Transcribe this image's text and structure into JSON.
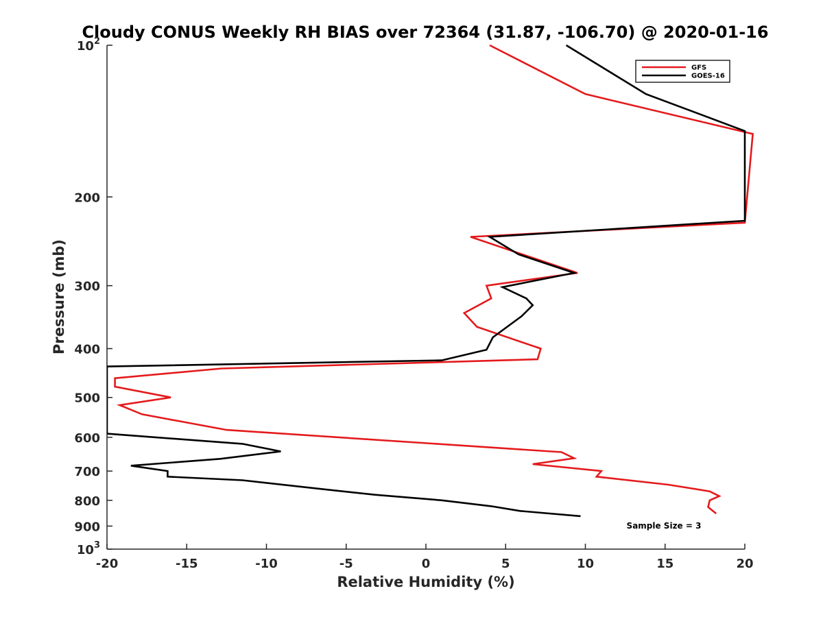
{
  "chart_data": {
    "type": "line",
    "title": "Cloudy CONUS Weekly RH BIAS over 72364 (31.87, -106.70) @ 2020-01-16",
    "xlabel": "Relative Humidity (%)",
    "ylabel": "Pressure (mb)",
    "xlim": [
      -20,
      20
    ],
    "ylim": [
      100,
      1000
    ],
    "yscale": "log",
    "y_reversed": true,
    "x_ticks": [
      -20,
      -15,
      -10,
      -5,
      0,
      5,
      10,
      15,
      20
    ],
    "x_tick_labels": [
      "-20",
      "-15",
      "-10",
      "-5",
      "0",
      "5",
      "10",
      "15",
      "20"
    ],
    "y_ticks": [
      {
        "value": 100,
        "base": "10",
        "exp": "2"
      },
      {
        "value": 200,
        "label": "200"
      },
      {
        "value": 300,
        "label": "300"
      },
      {
        "value": 400,
        "label": "400"
      },
      {
        "value": 500,
        "label": "500"
      },
      {
        "value": 600,
        "label": "600"
      },
      {
        "value": 700,
        "label": "700"
      },
      {
        "value": 800,
        "label": "800"
      },
      {
        "value": 900,
        "label": "900"
      },
      {
        "value": 1000,
        "base": "10",
        "exp": "3"
      }
    ],
    "grid": false,
    "legend": {
      "position": "top-right",
      "entries": [
        {
          "name": "GFS",
          "color": "#e41a1c"
        },
        {
          "name": "GOES-16",
          "color": "#000000"
        }
      ]
    },
    "annotation": "Sample Size = 3",
    "series": [
      {
        "name": "GFS",
        "color": "#e41a1c",
        "points": [
          [
            4.0,
            100
          ],
          [
            10.0,
            125
          ],
          [
            20.5,
            150
          ],
          [
            20.0,
            225
          ],
          [
            2.8,
            240
          ],
          [
            9.5,
            283
          ],
          [
            3.8,
            300
          ],
          [
            4.1,
            318
          ],
          [
            2.4,
            340
          ],
          [
            3.2,
            362
          ],
          [
            7.2,
            400
          ],
          [
            7.0,
            420
          ],
          [
            -12.8,
            438
          ],
          [
            -19.5,
            458
          ],
          [
            -19.5,
            476
          ],
          [
            -16.0,
            500
          ],
          [
            -19.2,
            518
          ],
          [
            -17.8,
            540
          ],
          [
            -12.5,
            580
          ],
          [
            8.5,
            642
          ],
          [
            9.3,
            660
          ],
          [
            6.7,
            678
          ],
          [
            11.0,
            700
          ],
          [
            10.7,
            718
          ],
          [
            15.2,
            745
          ],
          [
            17.8,
            768
          ],
          [
            18.4,
            785
          ],
          [
            17.8,
            800
          ],
          [
            17.7,
            825
          ],
          [
            18.2,
            850
          ]
        ]
      },
      {
        "name": "GOES-16",
        "color": "#000000",
        "points": [
          [
            8.8,
            100
          ],
          [
            13.8,
            125
          ],
          [
            20.0,
            148
          ],
          [
            20.0,
            223
          ],
          [
            4.0,
            240
          ],
          [
            5.8,
            260
          ],
          [
            9.3,
            283
          ],
          [
            4.8,
            302
          ],
          [
            6.3,
            318
          ],
          [
            6.7,
            328
          ],
          [
            6.0,
            345
          ],
          [
            4.2,
            380
          ],
          [
            3.8,
            402
          ],
          [
            1.0,
            422
          ],
          [
            -20.0,
            434
          ],
          [
            -20.0,
            590
          ],
          [
            -11.5,
            618
          ],
          [
            -9.1,
            640
          ],
          [
            -12.9,
            662
          ],
          [
            -18.5,
            683
          ],
          [
            -16.2,
            700
          ],
          [
            -16.2,
            718
          ],
          [
            -11.5,
            730
          ],
          [
            -6.5,
            760
          ],
          [
            -3.2,
            780
          ],
          [
            1.0,
            800
          ],
          [
            4.1,
            822
          ],
          [
            5.9,
            840
          ],
          [
            9.7,
            860
          ]
        ]
      }
    ]
  }
}
